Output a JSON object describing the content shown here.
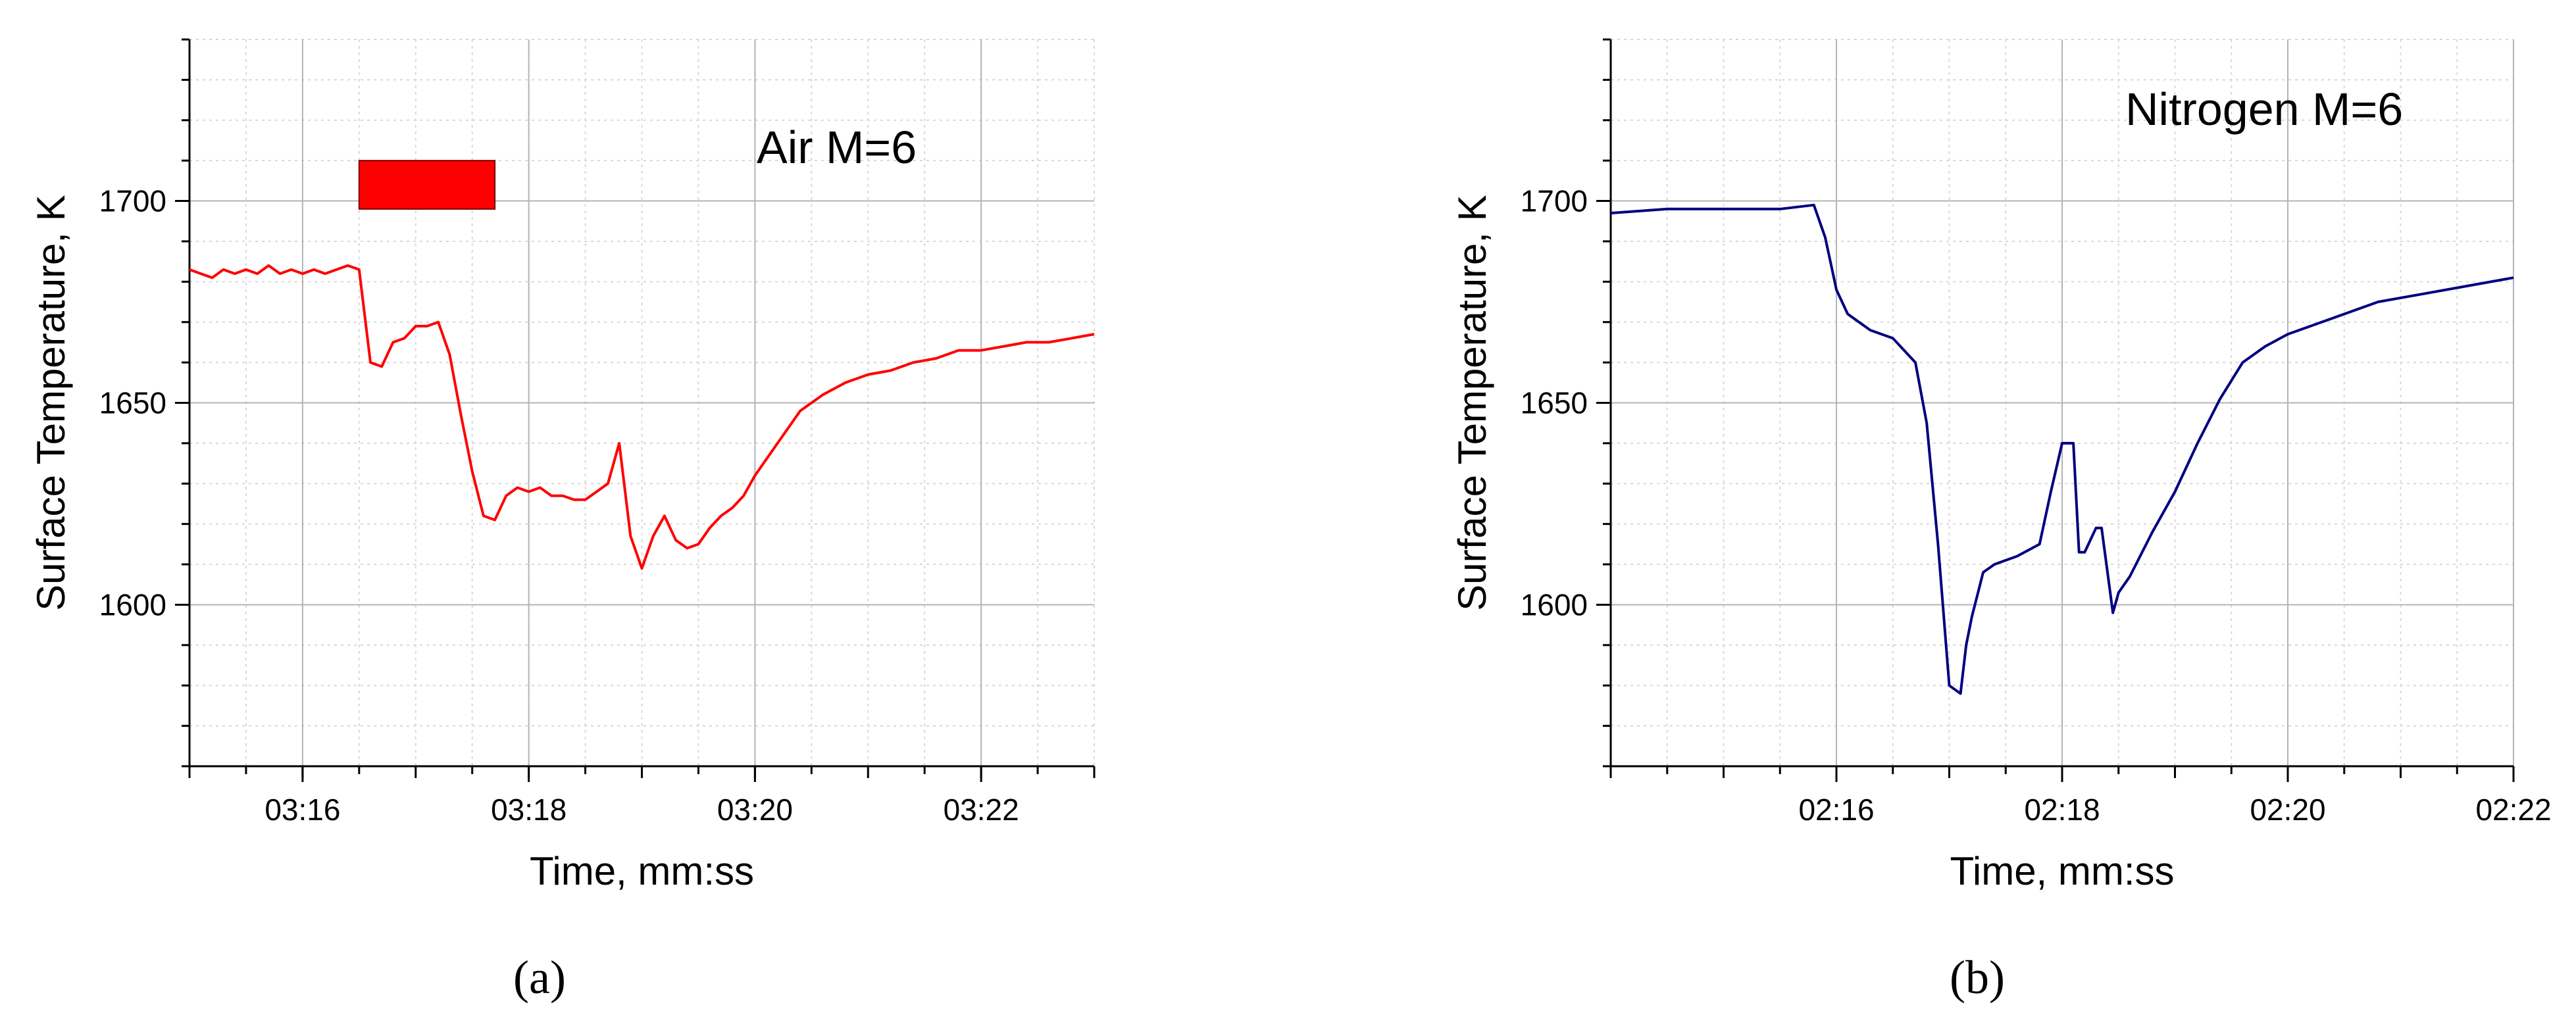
{
  "chart_data": [
    {
      "type": "line",
      "panel_label": "(a)",
      "annotation": "Air M=6",
      "xlabel": "Time, mm:ss",
      "ylabel": "Surface Temperature, K",
      "xlim": [
        "03:15",
        "03:23"
      ],
      "ylim": [
        1560,
        1740
      ],
      "x_ticks": [
        "03:16",
        "03:18",
        "03:20",
        "03:22"
      ],
      "y_ticks": [
        1600,
        1650,
        1700
      ],
      "grid": true,
      "colors": {
        "line": "#ff0000",
        "marker": "#ff0000"
      },
      "highlight_box": {
        "x_range": [
          "03:16.5",
          "03:17.7"
        ],
        "y_range": [
          1698,
          1710
        ],
        "color": "#ff0000"
      },
      "series": [
        {
          "x": [
            "03:15.00",
            "03:15.10",
            "03:15.20",
            "03:15.30",
            "03:15.40",
            "03:15.50",
            "03:15.60",
            "03:15.70",
            "03:15.80",
            "03:15.90",
            "03:16.00",
            "03:16.10",
            "03:16.20",
            "03:16.30",
            "03:16.40",
            "03:16.50",
            "03:16.60",
            "03:16.70",
            "03:16.80",
            "03:16.90",
            "03:17.00",
            "03:17.10",
            "03:17.20",
            "03:17.30",
            "03:17.40",
            "03:17.50",
            "03:17.60",
            "03:17.70",
            "03:17.80",
            "03:17.90",
            "03:18.00",
            "03:18.10",
            "03:18.20",
            "03:18.30",
            "03:18.40",
            "03:18.50",
            "03:18.60",
            "03:18.70",
            "03:18.80",
            "03:18.90",
            "03:19.00",
            "03:19.10",
            "03:19.20",
            "03:19.30",
            "03:19.40",
            "03:19.50",
            "03:19.60",
            "03:19.70",
            "03:19.80",
            "03:19.90",
            "03:20.00",
            "03:20.20",
            "03:20.40",
            "03:20.60",
            "03:20.80",
            "03:21.00",
            "03:21.20",
            "03:21.40",
            "03:21.60",
            "03:21.80",
            "03:22.00",
            "03:22.20",
            "03:22.40",
            "03:22.60",
            "03:22.80",
            "03:23.00"
          ],
          "y": [
            1683,
            1682,
            1681,
            1683,
            1682,
            1683,
            1682,
            1684,
            1682,
            1683,
            1682,
            1683,
            1682,
            1683,
            1684,
            1683,
            1660,
            1659,
            1665,
            1666,
            1669,
            1669,
            1670,
            1662,
            1647,
            1633,
            1622,
            1621,
            1627,
            1629,
            1628,
            1629,
            1627,
            1627,
            1626,
            1626,
            1628,
            1630,
            1640,
            1617,
            1609,
            1617,
            1622,
            1616,
            1614,
            1615,
            1619,
            1622,
            1624,
            1627,
            1632,
            1640,
            1648,
            1652,
            1655,
            1657,
            1658,
            1660,
            1661,
            1663,
            1663,
            1664,
            1665,
            1665,
            1666,
            1667
          ]
        }
      ]
    },
    {
      "type": "line",
      "panel_label": "(b)",
      "annotation": "Nitrogen M=6",
      "xlabel": "Time, mm:ss",
      "ylabel": "Surface Temperature, K",
      "xlim": [
        "02:14",
        "02:22"
      ],
      "ylim": [
        1560,
        1740
      ],
      "x_ticks": [
        "02:16",
        "02:18",
        "02:20",
        "02:22"
      ],
      "y_ticks": [
        1600,
        1650,
        1700
      ],
      "grid": true,
      "colors": {
        "line": "#000080"
      },
      "series": [
        {
          "x": [
            "02:14.00",
            "02:14.50",
            "02:15.00",
            "02:15.50",
            "02:15.80",
            "02:15.90",
            "02:16.00",
            "02:16.10",
            "02:16.20",
            "02:16.30",
            "02:16.50",
            "02:16.70",
            "02:16.80",
            "02:16.90",
            "02:17.00",
            "02:17.10",
            "02:17.15",
            "02:17.20",
            "02:17.30",
            "02:17.40",
            "02:17.50",
            "02:17.60",
            "02:17.80",
            "02:17.90",
            "02:18.00",
            "02:18.10",
            "02:18.15",
            "02:18.20",
            "02:18.30",
            "02:18.35",
            "02:18.45",
            "02:18.50",
            "02:18.60",
            "02:18.80",
            "02:19.00",
            "02:19.20",
            "02:19.40",
            "02:19.60",
            "02:19.80",
            "02:20.00",
            "02:20.40",
            "02:20.80",
            "02:21.20",
            "02:21.60",
            "02:22.00"
          ],
          "y": [
            1697,
            1698,
            1698,
            1698,
            1699,
            1691,
            1678,
            1672,
            1670,
            1668,
            1666,
            1660,
            1645,
            1615,
            1580,
            1578,
            1590,
            1597,
            1608,
            1610,
            1611,
            1612,
            1615,
            1628,
            1640,
            1640,
            1613,
            1613,
            1619,
            1619,
            1598,
            1603,
            1607,
            1618,
            1628,
            1640,
            1651,
            1660,
            1664,
            1667,
            1671,
            1675,
            1677,
            1679,
            1681
          ]
        }
      ]
    }
  ]
}
